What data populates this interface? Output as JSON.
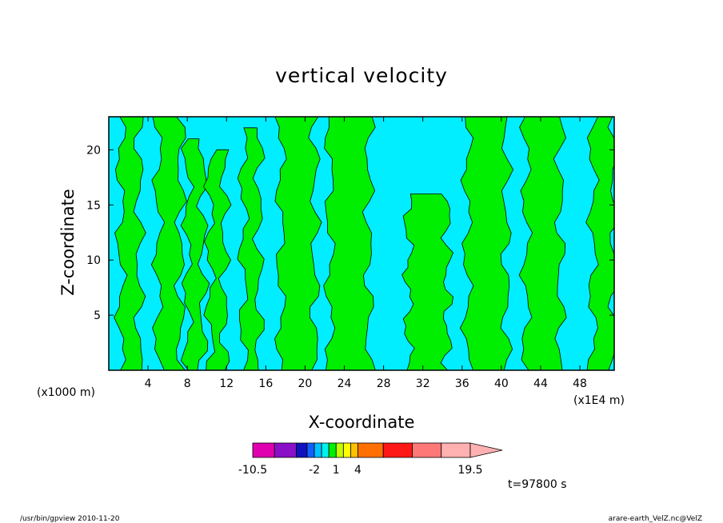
{
  "chart_data": {
    "type": "heatmap",
    "title": "vertical velocity",
    "xlabel": "X-coordinate",
    "ylabel": "Z-coordinate",
    "x_unit_left": "(x1000 m)",
    "x_unit_right": "(x1E4 m)",
    "xlim": [
      0,
      51.5
    ],
    "ylim": [
      0,
      23
    ],
    "x_ticks": [
      "4",
      "8",
      "12",
      "16",
      "20",
      "24",
      "28",
      "32",
      "36",
      "40",
      "44",
      "48"
    ],
    "y_ticks": [
      "5",
      "10",
      "15",
      "20"
    ],
    "colorbar": {
      "tick_labels": [
        "-10.5",
        "-2",
        "1",
        "4",
        "19.5"
      ],
      "levels": [
        -10.5,
        -7.5,
        -4.5,
        -3,
        -2,
        -1,
        0,
        1,
        2,
        3,
        4,
        7.5,
        11.5,
        15.5,
        19.5
      ],
      "colors": [
        "#e000b0",
        "#8a10c8",
        "#1010c0",
        "#1060ff",
        "#00c0ff",
        "#00f0f0",
        "#00f000",
        "#c0ff00",
        "#ffff00",
        "#ffc000",
        "#ff7000",
        "#ff1818",
        "#ff7878",
        "#ffb0b0"
      ]
    },
    "fill_colors": {
      "negative": "#00eeff",
      "positive": "#00ee00"
    },
    "positive_bands": [
      {
        "x0": 1.2,
        "x1": 3.1,
        "zmin": 0,
        "zmax": 23
      },
      {
        "x0": 5.0,
        "x1": 7.3,
        "zmin": 0,
        "zmax": 23
      },
      {
        "x0": 8.0,
        "x1": 9.6,
        "zmin": 0,
        "zmax": 21
      },
      {
        "x0": 10.3,
        "x1": 11.8,
        "zmin": 0,
        "zmax": 20
      },
      {
        "x0": 13.7,
        "x1": 15.3,
        "zmin": 0,
        "zmax": 22
      },
      {
        "x0": 17.5,
        "x1": 21.0,
        "zmin": 0,
        "zmax": 23
      },
      {
        "x0": 22.5,
        "x1": 26.5,
        "zmin": 0,
        "zmax": 23
      },
      {
        "x0": 30.5,
        "x1": 34.5,
        "zmin": 0,
        "zmax": 16
      },
      {
        "x0": 36.5,
        "x1": 40.5,
        "zmin": 0,
        "zmax": 23
      },
      {
        "x0": 42.5,
        "x1": 46.0,
        "zmin": 0,
        "zmax": 23
      },
      {
        "x0": 49.3,
        "x1": 51.5,
        "zmin": 0,
        "zmax": 23
      }
    ],
    "time_label": "t=97800 s"
  },
  "footer": {
    "left": "/usr/bin/gpview   2010-11-20",
    "right": "arare-earth_VelZ.nc@VelZ"
  }
}
